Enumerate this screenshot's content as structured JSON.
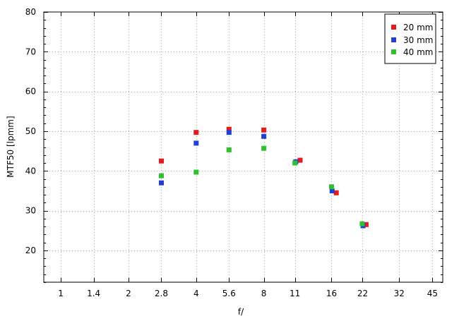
{
  "chart_data": {
    "type": "scatter",
    "xlabel": "f/",
    "ylabel": "MTF50 [lpmm]",
    "x_scale": "log",
    "x_ticks": [
      {
        "value": 1,
        "label": "1"
      },
      {
        "value": 1.4,
        "label": "1.4"
      },
      {
        "value": 2,
        "label": "2"
      },
      {
        "value": 2.8,
        "label": "2.8"
      },
      {
        "value": 4,
        "label": "4"
      },
      {
        "value": 5.6,
        "label": "5.6"
      },
      {
        "value": 8,
        "label": "8"
      },
      {
        "value": 11,
        "label": "11"
      },
      {
        "value": 16,
        "label": "16"
      },
      {
        "value": 22,
        "label": "22"
      },
      {
        "value": 32,
        "label": "32"
      },
      {
        "value": 45,
        "label": "45"
      }
    ],
    "xlim": [
      0.84,
      50.0
    ],
    "ylim": [
      12,
      80
    ],
    "y_ticks": [
      20,
      30,
      40,
      50,
      60,
      70,
      80
    ],
    "grid": true,
    "legend_position": "top-right",
    "series": [
      {
        "name": "20 mm",
        "color": "#e41a1c",
        "points": [
          {
            "x": 2.8,
            "y": 42.5
          },
          {
            "x": 4,
            "y": 49.7
          },
          {
            "x": 5.6,
            "y": 50.5
          },
          {
            "x": 8,
            "y": 50.3
          },
          {
            "x": 11.6,
            "y": 42.7
          },
          {
            "x": 16.8,
            "y": 34.5
          },
          {
            "x": 22.8,
            "y": 26.5
          }
        ]
      },
      {
        "name": "30 mm",
        "color": "#1f3fd6",
        "points": [
          {
            "x": 2.8,
            "y": 37.0
          },
          {
            "x": 4,
            "y": 47.0
          },
          {
            "x": 5.6,
            "y": 49.7
          },
          {
            "x": 8,
            "y": 48.7
          },
          {
            "x": 11.1,
            "y": 42.3
          },
          {
            "x": 16.1,
            "y": 35.0
          },
          {
            "x": 22.1,
            "y": 26.2
          }
        ]
      },
      {
        "name": "40 mm",
        "color": "#2ec02e",
        "points": [
          {
            "x": 2.8,
            "y": 38.8
          },
          {
            "x": 4,
            "y": 39.7
          },
          {
            "x": 5.6,
            "y": 45.3
          },
          {
            "x": 8,
            "y": 45.7
          },
          {
            "x": 11,
            "y": 42.0
          },
          {
            "x": 16,
            "y": 36.0
          },
          {
            "x": 21.9,
            "y": 26.7
          }
        ]
      }
    ]
  }
}
